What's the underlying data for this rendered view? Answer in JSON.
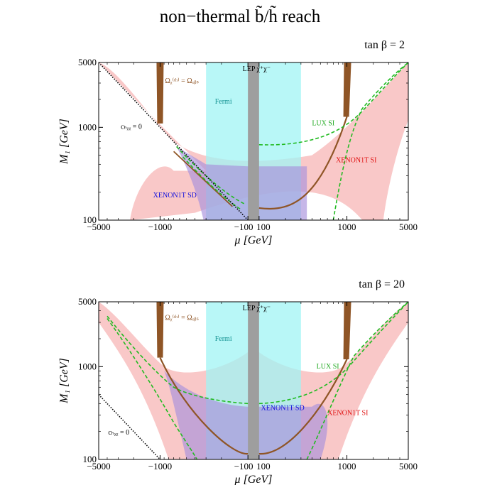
{
  "page": {
    "title": "non−thermal b̃/h̃ reach"
  },
  "chart_data": [
    {
      "type": "area",
      "title": "",
      "corner_label": "tan β = 2",
      "xlabel": "μ  [GeV]",
      "ylabel": "M₁  [GeV]",
      "xscale": "symlog",
      "yscale": "log",
      "xlim": [
        -5000,
        5000
      ],
      "ylim": [
        100,
        5000
      ],
      "x_ticks": [
        -5000,
        -1000,
        -100,
        100,
        1000,
        5000
      ],
      "x_tick_labels": [
        "−5000",
        "−1000",
        "−100",
        "100",
        "1000",
        "5000"
      ],
      "y_ticks": [
        100,
        1000,
        5000
      ],
      "y_tick_labels": [
        "100",
        "1000",
        "5000"
      ],
      "grid": false,
      "colors": {
        "xenon1t_si": "#f9c8c8",
        "xenon1t_sd": "#a890dc",
        "fermi": "#a0f4f4",
        "lep": "#9e9e9e",
        "relic_band": "#8f5526",
        "lux_si": "#22bb22",
        "higgs_blind": "#000000"
      },
      "annotations": {
        "relic": "Ωᵪ⁽ᵗʰ⁾ = Ωₒᵦₛ",
        "lep": "LEP χ⁺χ⁻",
        "fermi": "Fermi",
        "higgs": "cₕᵪᵪ = 0",
        "lux": "LUX SI",
        "xenon_si": "XENON1T SI",
        "xenon_sd": "XENON1T SD"
      },
      "series": [
        {
          "name": "XENON1T SI",
          "x": [
            -5000,
            -3000,
            -2000,
            -1000,
            -300,
            300,
            1000,
            2000,
            3000,
            5000
          ],
          "y": [
            5000,
            3000,
            2000,
            900,
            380,
            380,
            900,
            1700,
            3000,
            5000
          ]
        },
        {
          "name": "XENON1T SD",
          "x": [
            -500,
            -300,
            -100,
            100,
            300,
            500
          ],
          "y": [
            700,
            300,
            110,
            110,
            300,
            700
          ]
        },
        {
          "name": "Fermi",
          "x": [
            -300,
            -100,
            100,
            300
          ],
          "y": [
            100,
            5000,
            5000,
            100
          ]
        },
        {
          "name": "LEP χ⁺χ⁻",
          "x": [
            -100,
            100
          ],
          "y": [
            100,
            5000
          ]
        },
        {
          "name": "LUX SI",
          "x": [
            -600,
            -300,
            -100,
            100,
            300,
            1000,
            3000,
            5000
          ],
          "y": [
            620,
            300,
            150,
            650,
            700,
            1000,
            3000,
            5000
          ]
        },
        {
          "name": "cₕᵪᵪ = 0",
          "x": [
            -5000,
            -1000,
            -100
          ],
          "y": [
            5000,
            1000,
            100
          ]
        }
      ]
    },
    {
      "type": "area",
      "title": "",
      "corner_label": "tan β = 20",
      "xlabel": "μ  [GeV]",
      "ylabel": "M₁  [GeV]",
      "xscale": "symlog",
      "yscale": "log",
      "xlim": [
        -5000,
        5000
      ],
      "ylim": [
        100,
        5000
      ],
      "x_ticks": [
        -5000,
        -1000,
        -100,
        100,
        1000,
        5000
      ],
      "x_tick_labels": [
        "−5000",
        "−1000",
        "−100",
        "100",
        "1000",
        "5000"
      ],
      "y_ticks": [
        100,
        1000,
        5000
      ],
      "y_tick_labels": [
        "100",
        "1000",
        "5000"
      ],
      "grid": false,
      "colors": {
        "xenon1t_si": "#f9c8c8",
        "xenon1t_sd": "#a890dc",
        "fermi": "#a0f4f4",
        "lep": "#9e9e9e",
        "relic_band": "#8f5526",
        "lux_si": "#22bb22",
        "higgs_blind": "#000000"
      },
      "annotations": {
        "relic": "Ωᵪ⁽ᵗʰ⁾ = Ωₒᵦₛ",
        "lep": "LEP χ⁺χ⁻",
        "fermi": "Fermi",
        "higgs": "cₕᵪᵪ = 0",
        "lux": "LUX SI",
        "xenon_si": "XENON1T SI",
        "xenon_sd": "XENON1T SD"
      },
      "series": [
        {
          "name": "XENON1T SI",
          "x": [
            -5000,
            -2000,
            -1000,
            -500,
            500,
            1000,
            2000,
            5000
          ],
          "y": [
            5000,
            2000,
            900,
            100,
            100,
            900,
            2000,
            5000
          ]
        },
        {
          "name": "XENON1T SD",
          "x": [
            -700,
            -300,
            -100,
            100,
            300,
            700
          ],
          "y": [
            700,
            300,
            110,
            110,
            300,
            700
          ]
        },
        {
          "name": "Fermi",
          "x": [
            -300,
            -100,
            100,
            300
          ],
          "y": [
            100,
            5000,
            5000,
            100
          ]
        },
        {
          "name": "LEP χ⁺χ⁻",
          "x": [
            -100,
            100
          ],
          "y": [
            100,
            5000
          ]
        },
        {
          "name": "LUX SI",
          "x": [
            -5000,
            -1000,
            -300,
            100,
            1000,
            5000
          ],
          "y": [
            4500,
            900,
            400,
            400,
            1000,
            5000
          ]
        },
        {
          "name": "cₕᵪᵪ = 0",
          "x": [
            -5000,
            -1000
          ],
          "y": [
            500,
            100
          ]
        }
      ]
    }
  ]
}
